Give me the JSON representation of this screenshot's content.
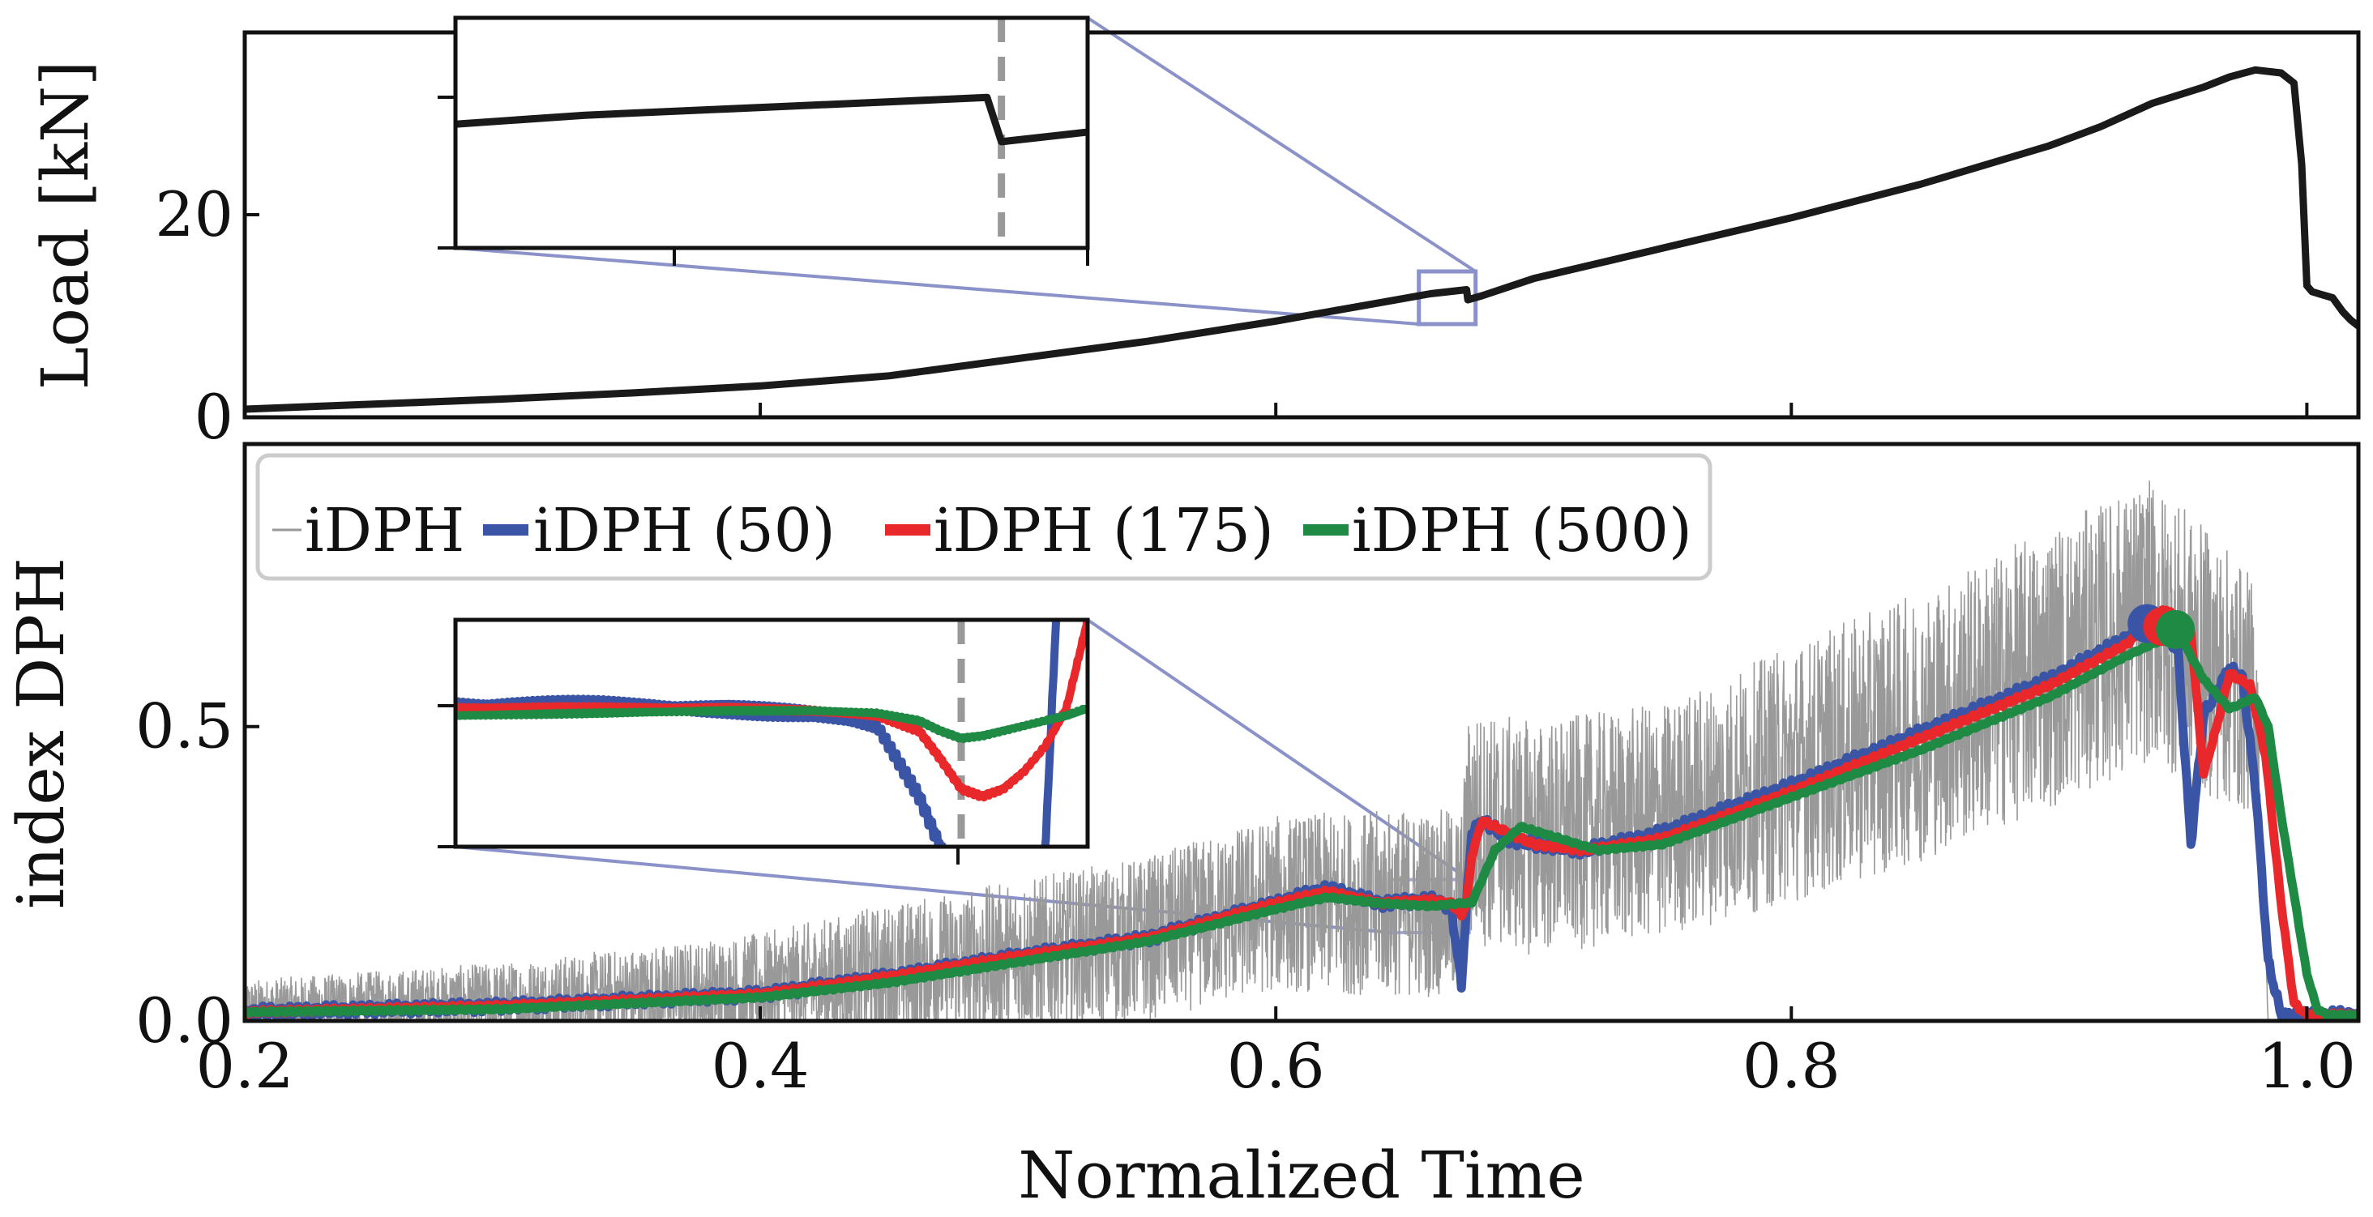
{
  "chart_data": [
    {
      "type": "line",
      "panel": "top",
      "ylabel": "Load [kN]",
      "xlabel": "",
      "xlim": [
        0.2,
        1.02
      ],
      "ylim": [
        0,
        38
      ],
      "yticks": [
        0,
        20
      ],
      "yticklabels": [
        "0",
        "20"
      ],
      "xticks": [
        0.2,
        0.4,
        0.6,
        0.8,
        1.0
      ],
      "grid": false,
      "series": [
        {
          "name": "Load",
          "color": "#1a1a1a",
          "x": [
            0.2,
            0.25,
            0.3,
            0.35,
            0.4,
            0.45,
            0.5,
            0.55,
            0.6,
            0.62,
            0.64,
            0.66,
            0.674,
            0.6745,
            0.68,
            0.7,
            0.75,
            0.8,
            0.85,
            0.9,
            0.92,
            0.94,
            0.96,
            0.97,
            0.98,
            0.99,
            0.995,
            0.998,
            1.0,
            1.002,
            1.006,
            1.01,
            1.014,
            1.017,
            1.02
          ],
          "values": [
            0.8,
            1.3,
            1.8,
            2.4,
            3.1,
            4.1,
            5.8,
            7.5,
            9.5,
            10.4,
            11.3,
            12.2,
            12.6,
            11.6,
            12.0,
            13.7,
            16.7,
            19.7,
            23.0,
            26.8,
            28.7,
            31.0,
            32.6,
            33.6,
            34.3,
            34.0,
            33.0,
            25.0,
            13.0,
            12.4,
            12.1,
            11.8,
            10.4,
            9.6,
            9.0
          ]
        }
      ],
      "inset": {
        "xlim": [
          0.6555,
          0.6775
        ],
        "ylim": [
          9.2,
          14.4
        ],
        "vline_x": 0.6745,
        "vline_style": "dashed gray"
      }
    },
    {
      "type": "line",
      "panel": "bottom",
      "ylabel": "index DPH",
      "xlabel": "Normalized Time",
      "xlim": [
        0.2,
        1.02
      ],
      "ylim": [
        0.0,
        0.98
      ],
      "yticks": [
        0.0,
        0.5
      ],
      "yticklabels": [
        "0.0",
        "0.5"
      ],
      "xticks": [
        0.2,
        0.4,
        0.6,
        0.8,
        1.0
      ],
      "xticklabels": [
        "0.2",
        "0.4",
        "0.6",
        "0.8",
        "1.0"
      ],
      "grid": false,
      "legend": {
        "position": "top-left",
        "entries": [
          "iDPH",
          "iDPH (50)",
          "iDPH (175)",
          "iDPH (500)"
        ]
      },
      "series": [
        {
          "name": "iDPH",
          "color": "#999999",
          "note": "raw noisy signal, spread around the iDPH (50) trend",
          "x": [
            0.2,
            0.3,
            0.4,
            0.45,
            0.5,
            0.55,
            0.6,
            0.65,
            0.672,
            0.675,
            0.7,
            0.75,
            0.8,
            0.85,
            0.9,
            0.94,
            0.97,
            0.98,
            0.985
          ],
          "values": [
            0.02,
            0.03,
            0.05,
            0.08,
            0.11,
            0.14,
            0.2,
            0.2,
            0.2,
            0.33,
            0.31,
            0.34,
            0.42,
            0.5,
            0.6,
            0.68,
            0.58,
            0.55,
            0.0
          ],
          "noise_halfwidth": [
            0.05,
            0.07,
            0.1,
            0.12,
            0.13,
            0.14,
            0.15,
            0.16,
            0.16,
            0.2,
            0.2,
            0.2,
            0.22,
            0.23,
            0.24,
            0.24,
            0.22,
            0.2,
            0.0
          ]
        },
        {
          "name": "iDPH (50)",
          "color": "#3b55a6",
          "x": [
            0.2,
            0.3,
            0.4,
            0.45,
            0.5,
            0.55,
            0.6,
            0.62,
            0.64,
            0.66,
            0.668,
            0.672,
            0.674,
            0.676,
            0.68,
            0.69,
            0.7,
            0.72,
            0.75,
            0.8,
            0.85,
            0.9,
            0.93,
            0.94,
            0.95,
            0.955,
            0.96,
            0.97,
            0.975,
            0.98,
            0.985,
            0.99,
            1.0,
            1.02
          ],
          "values": [
            0.015,
            0.025,
            0.045,
            0.075,
            0.11,
            0.14,
            0.2,
            0.225,
            0.2,
            0.205,
            0.195,
            0.06,
            0.2,
            0.32,
            0.34,
            0.31,
            0.3,
            0.29,
            0.32,
            0.4,
            0.49,
            0.58,
            0.65,
            0.68,
            0.63,
            0.3,
            0.52,
            0.6,
            0.58,
            0.4,
            0.1,
            0.01,
            0.01,
            0.01
          ]
        },
        {
          "name": "iDPH (175)",
          "color": "#e8282b",
          "x": [
            0.2,
            0.3,
            0.4,
            0.45,
            0.5,
            0.55,
            0.6,
            0.62,
            0.64,
            0.66,
            0.668,
            0.672,
            0.674,
            0.676,
            0.68,
            0.69,
            0.7,
            0.72,
            0.75,
            0.8,
            0.85,
            0.9,
            0.93,
            0.945,
            0.955,
            0.96,
            0.965,
            0.97,
            0.978,
            0.984,
            0.99,
            0.995,
            1.0,
            1.02
          ],
          "values": [
            0.015,
            0.025,
            0.045,
            0.075,
            0.11,
            0.14,
            0.2,
            0.22,
            0.2,
            0.205,
            0.2,
            0.18,
            0.2,
            0.28,
            0.34,
            0.32,
            0.3,
            0.29,
            0.31,
            0.39,
            0.48,
            0.57,
            0.64,
            0.7,
            0.66,
            0.42,
            0.5,
            0.59,
            0.57,
            0.45,
            0.2,
            0.03,
            0.01,
            0.01
          ]
        },
        {
          "name": "iDPH (500)",
          "color": "#1e8a44",
          "x": [
            0.2,
            0.3,
            0.4,
            0.45,
            0.5,
            0.55,
            0.6,
            0.62,
            0.64,
            0.66,
            0.672,
            0.676,
            0.685,
            0.695,
            0.71,
            0.725,
            0.75,
            0.8,
            0.85,
            0.9,
            0.93,
            0.95,
            0.96,
            0.97,
            0.98,
            0.985,
            0.99,
            1.0,
            1.004,
            1.008,
            1.02
          ],
          "values": [
            0.015,
            0.02,
            0.04,
            0.065,
            0.1,
            0.135,
            0.19,
            0.21,
            0.2,
            0.195,
            0.2,
            0.2,
            0.29,
            0.33,
            0.31,
            0.29,
            0.3,
            0.38,
            0.46,
            0.55,
            0.62,
            0.66,
            0.58,
            0.53,
            0.55,
            0.5,
            0.35,
            0.08,
            0.02,
            0.01,
            0.01
          ]
        }
      ],
      "markers": [
        {
          "series": "iDPH (50)",
          "x": 0.938,
          "y": 0.675,
          "color": "#3b55a6"
        },
        {
          "series": "iDPH (175)",
          "x": 0.944,
          "y": 0.67,
          "color": "#e8282b"
        },
        {
          "series": "iDPH (500)",
          "x": 0.949,
          "y": 0.665,
          "color": "#1e8a44"
        }
      ],
      "inset": {
        "xlim": [
          0.645,
          0.675
        ],
        "ylim": [
          0.15,
          0.24
        ],
        "vline_x": 0.669,
        "vline_style": "dashed gray"
      }
    }
  ]
}
